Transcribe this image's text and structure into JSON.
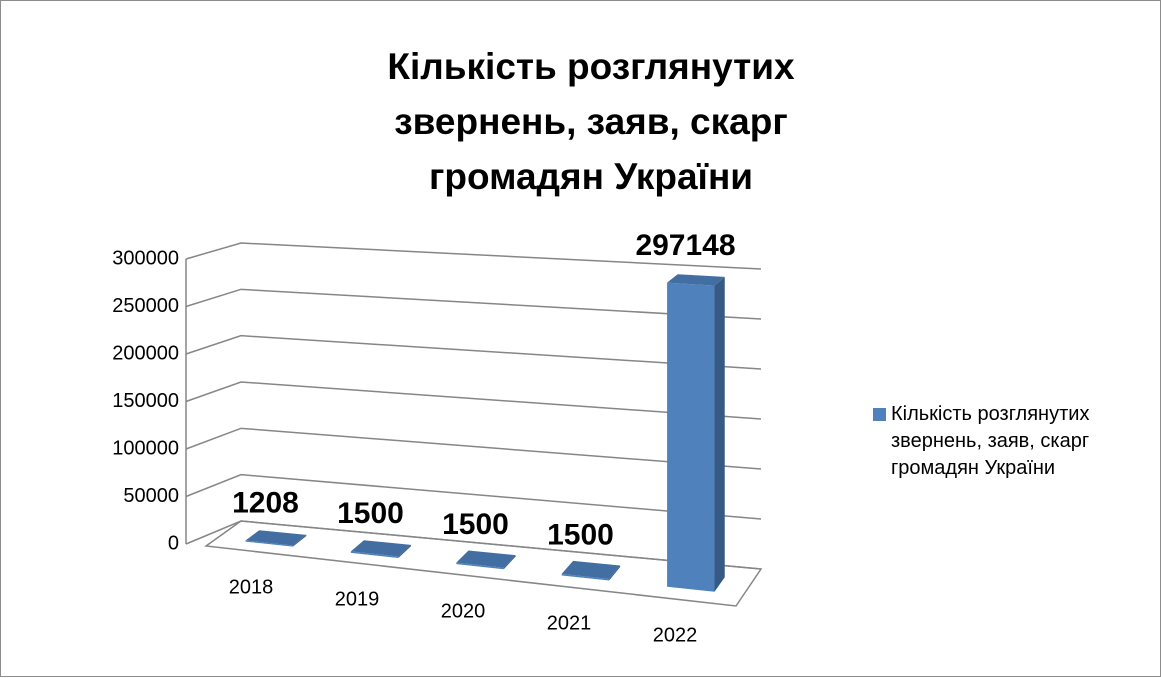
{
  "chart_data": {
    "type": "bar3d",
    "title": "Кількість розглянутих звернень, заяв, скарг громадян України",
    "categories": [
      "2018",
      "2019",
      "2020",
      "2021",
      "2022"
    ],
    "series": [
      {
        "name": "Кількість розглянутих звернень, заяв, скарг громадян України",
        "color": "#4f81bd",
        "values": [
          1208,
          1500,
          1500,
          1500,
          297148
        ]
      }
    ],
    "ylim": [
      0,
      300000
    ],
    "yticks": [
      0,
      50000,
      100000,
      150000,
      200000,
      250000,
      300000
    ],
    "grid": true,
    "legend": "right"
  }
}
